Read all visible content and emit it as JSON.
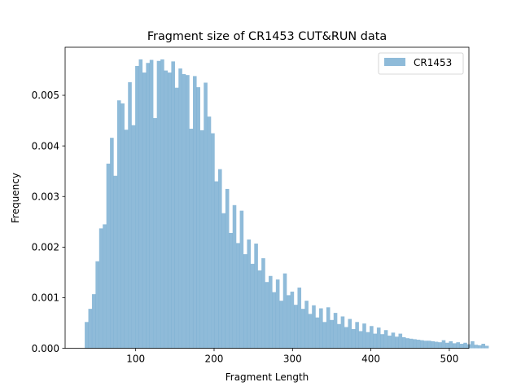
{
  "chart_data": {
    "type": "bar",
    "title": "Fragment size of CR1453 CUT&RUN data",
    "xlabel": "Fragment Length",
    "ylabel": "Frequency",
    "xlim": [
      10,
      525
    ],
    "ylim": [
      0,
      0.00595
    ],
    "xticks": [
      100,
      200,
      300,
      400,
      500
    ],
    "xtick_labels": [
      "100",
      "200",
      "300",
      "400",
      "500"
    ],
    "yticks": [
      0,
      0.001,
      0.002,
      0.003,
      0.004,
      0.005
    ],
    "ytick_labels": [
      "0.000",
      "0.001",
      "0.002",
      "0.003",
      "0.004",
      "0.005"
    ],
    "legend_position": "top-right",
    "series": [
      {
        "name": "CR1453",
        "color": "#1f77b4",
        "alpha": 0.5,
        "bin_start": 35,
        "bin_width": 4.6,
        "values": [
          0.00052,
          0.00078,
          0.00107,
          0.00172,
          0.00237,
          0.00245,
          0.00365,
          0.00416,
          0.00341,
          0.0049,
          0.00484,
          0.00432,
          0.00526,
          0.00441,
          0.00558,
          0.00571,
          0.00545,
          0.00564,
          0.0057,
          0.00455,
          0.00568,
          0.00571,
          0.00549,
          0.00545,
          0.00567,
          0.00515,
          0.00553,
          0.00542,
          0.0054,
          0.00434,
          0.00538,
          0.00516,
          0.00431,
          0.00525,
          0.00458,
          0.00425,
          0.0033,
          0.00354,
          0.00267,
          0.00315,
          0.00228,
          0.00283,
          0.00208,
          0.00272,
          0.00186,
          0.00215,
          0.00167,
          0.00207,
          0.00154,
          0.00178,
          0.00131,
          0.00143,
          0.00111,
          0.00136,
          0.00094,
          0.00148,
          0.00105,
          0.00112,
          0.00086,
          0.0012,
          0.00078,
          0.00094,
          0.00068,
          0.00085,
          0.00061,
          0.00079,
          0.00052,
          0.00081,
          0.00056,
          0.0007,
          0.00048,
          0.00063,
          0.00042,
          0.00058,
          0.00038,
          0.00052,
          0.00034,
          0.00049,
          0.00032,
          0.00044,
          0.00029,
          0.00041,
          0.00028,
          0.00036,
          0.00025,
          0.00031,
          0.00023,
          0.00029,
          0.00022,
          0.0002,
          0.00019,
          0.00018,
          0.00017,
          0.00016,
          0.00015,
          0.00015,
          0.00014,
          0.00013,
          0.00012,
          0.00016,
          0.00011,
          0.00014,
          0.0001,
          0.00012,
          9e-05,
          0.00011,
          8e-05,
          0.00014,
          7e-05,
          6e-05,
          9e-05,
          5e-05
        ]
      }
    ]
  }
}
